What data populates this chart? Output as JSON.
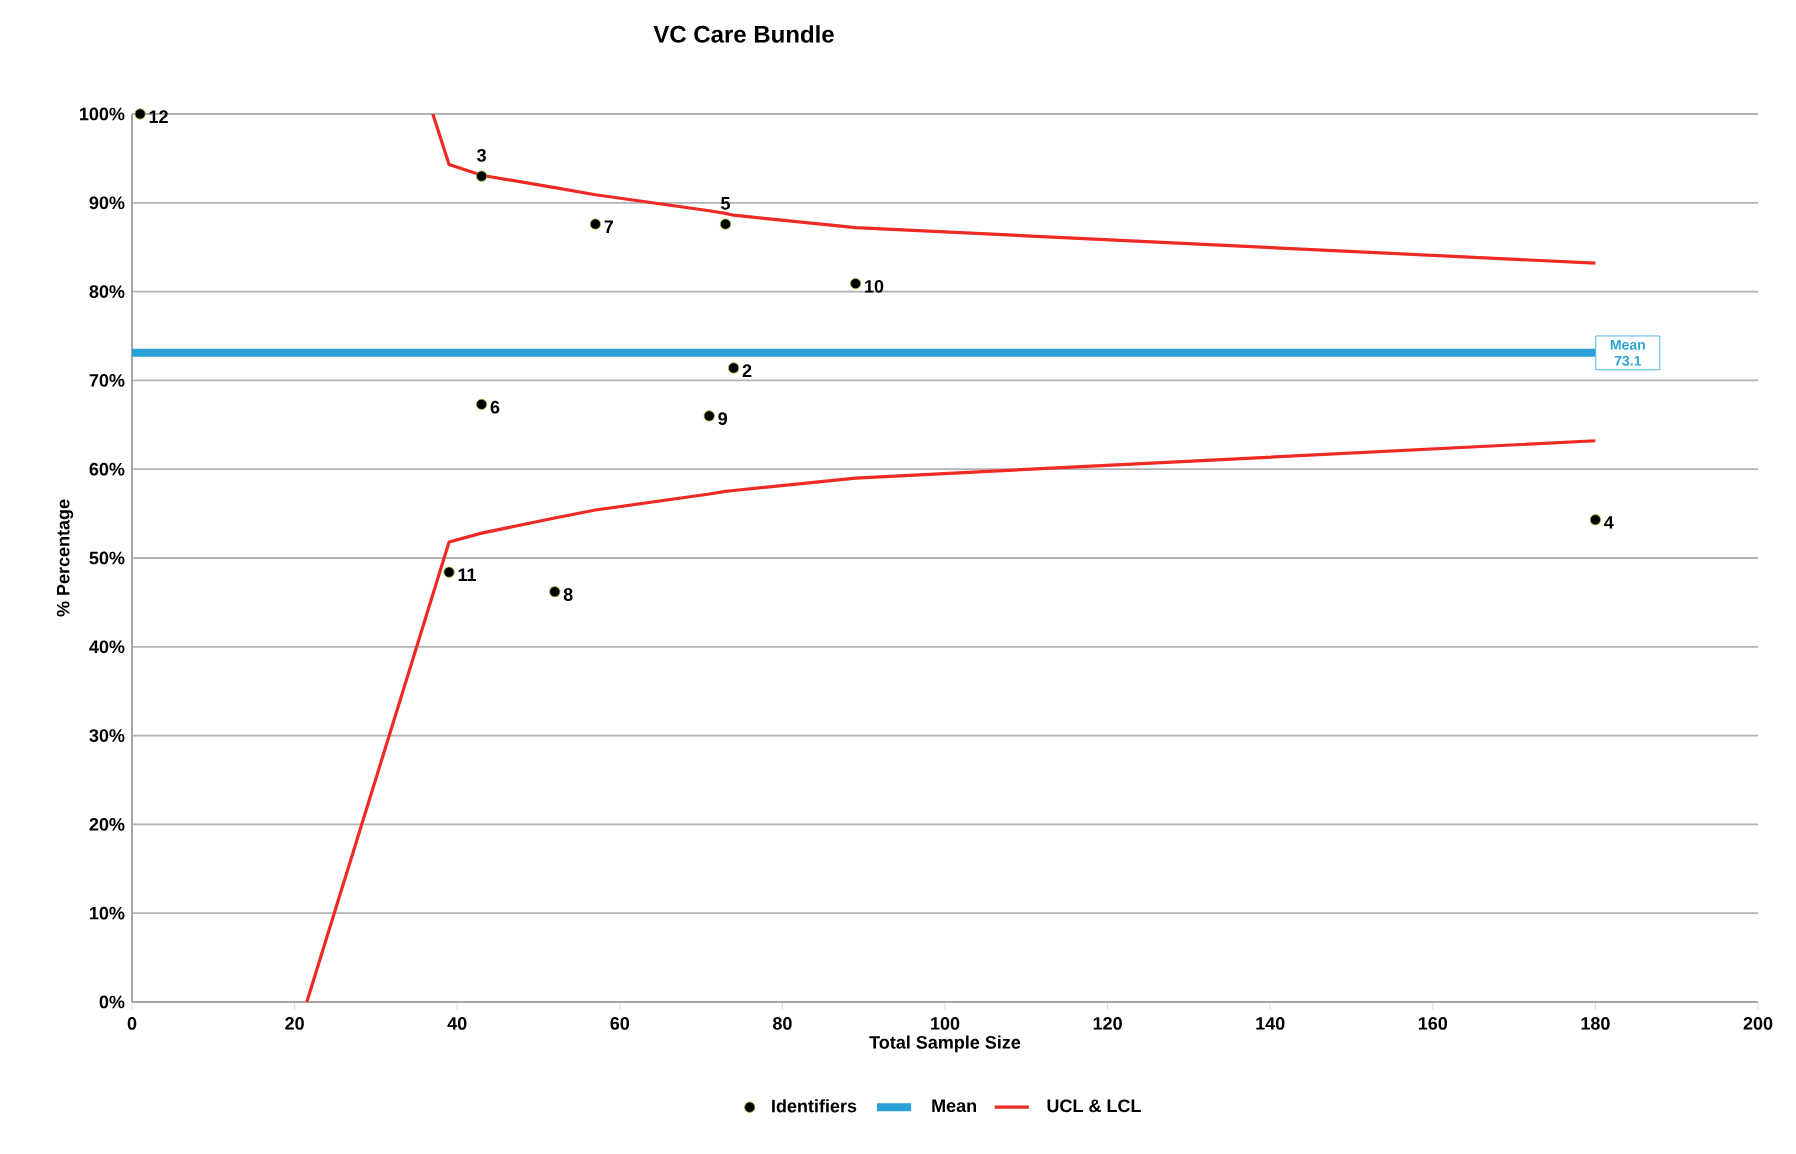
{
  "chart_data": {
    "type": "scatter",
    "title": "VC Care Bundle",
    "xlabel": "Total Sample Size",
    "ylabel": "% Percentage",
    "xlim": [
      0,
      200
    ],
    "xticks": [
      0,
      20,
      40,
      60,
      80,
      100,
      120,
      140,
      160,
      180,
      200
    ],
    "ylim": [
      0,
      100
    ],
    "yticks": [
      {
        "value": 0,
        "label": "0%"
      },
      {
        "value": 10,
        "label": "10%"
      },
      {
        "value": 20,
        "label": "20%"
      },
      {
        "value": 30,
        "label": "30%"
      },
      {
        "value": 40,
        "label": "40%"
      },
      {
        "value": 50,
        "label": "50%"
      },
      {
        "value": 60,
        "label": "60%"
      },
      {
        "value": 70,
        "label": "70%"
      },
      {
        "value": 80,
        "label": "80%"
      },
      {
        "value": 90,
        "label": "90%"
      },
      {
        "value": 100,
        "label": "100%"
      }
    ],
    "grid": "y",
    "legend": "bottom",
    "marker": "circle",
    "series": [
      {
        "name": "Identifiers",
        "color": "#000000",
        "x": [
          74,
          43,
          180,
          73,
          43,
          57,
          52,
          71,
          89,
          39,
          1
        ],
        "values": [
          71.4,
          93.0,
          54.3,
          87.6,
          67.3,
          87.6,
          46.2,
          66.0,
          80.9,
          48.4,
          100
        ]
      },
      {
        "name": "Mean",
        "type": "line",
        "marker": "none",
        "color": "#2a9fd8",
        "x": [
          0,
          180
        ],
        "values": [
          73.1,
          73.1
        ]
      },
      {
        "name": "UCL & LCL",
        "type": "line",
        "marker": "none",
        "color": "#ee2a24",
        "x": [
          37,
          39,
          43,
          52,
          57,
          71,
          73,
          74,
          89,
          180
        ],
        "values": [
          100,
          94.3,
          93.1,
          91.7,
          90.9,
          89.1,
          88.8,
          88.6,
          87.2,
          83.2
        ]
      },
      {
        "type": "line",
        "marker": "none",
        "color": "#ee2a24",
        "x": [
          21.5,
          39,
          43,
          52,
          57,
          71,
          73,
          74,
          89,
          180
        ],
        "values": [
          0,
          51.8,
          52.8,
          54.5,
          55.4,
          57.2,
          57.5,
          57.6,
          59.0,
          63.2
        ]
      }
    ],
    "annotations": [
      {
        "text": "2",
        "x": 74,
        "y": 71.4
      },
      {
        "text": "3",
        "x": 43,
        "y": 93.0
      },
      {
        "text": "4",
        "x": 180,
        "y": 54.3
      },
      {
        "text": "5",
        "x": 73,
        "y": 87.6
      },
      {
        "text": "6",
        "x": 43,
        "y": 67.3
      },
      {
        "text": "7",
        "x": 57,
        "y": 87.6
      },
      {
        "text": "8",
        "x": 52,
        "y": 46.2
      },
      {
        "text": "9",
        "x": 71,
        "y": 66.0
      },
      {
        "text": "10",
        "x": 89,
        "y": 80.9
      },
      {
        "text": "11",
        "x": 39,
        "y": 48.4
      },
      {
        "text": "12",
        "x": 1,
        "y": 100
      },
      {
        "text": "Mean 73.1",
        "x": 180,
        "y": 73.1
      }
    ]
  }
}
